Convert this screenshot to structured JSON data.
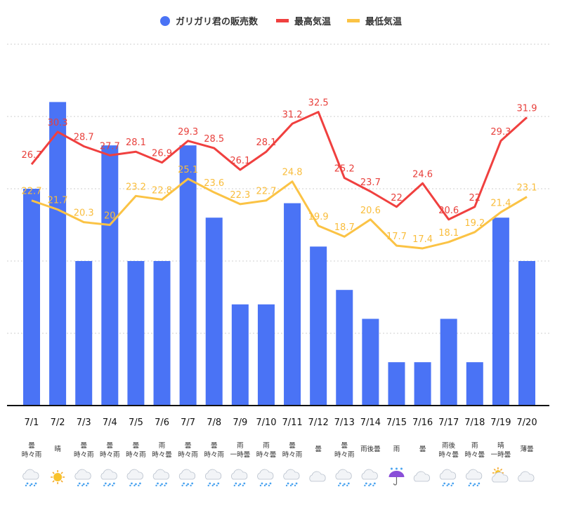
{
  "chart_data": {
    "type": "bar+line",
    "legend": {
      "placement": "top-center",
      "items": [
        "ガリガリ君の販売数",
        "最高気温",
        "最低気温"
      ]
    },
    "colors": {
      "sales": "#4a73f5",
      "high": "#f0403f",
      "low": "#fbc345"
    },
    "categories": [
      "7/1",
      "7/2",
      "7/3",
      "7/4",
      "7/5",
      "7/6",
      "7/7",
      "7/8",
      "7/9",
      "7/10",
      "7/11",
      "7/12",
      "7/13",
      "7/14",
      "7/15",
      "7/16",
      "7/17",
      "7/18",
      "7/19",
      "7/20"
    ],
    "weather": [
      [
        "曇",
        "時々雨"
      ],
      [
        "晴"
      ],
      [
        "曇",
        "時々雨"
      ],
      [
        "曇",
        "時々雨"
      ],
      [
        "曇",
        "時々雨"
      ],
      [
        "雨",
        "時々曇"
      ],
      [
        "曇",
        "時々雨"
      ],
      [
        "曇",
        "時々雨"
      ],
      [
        "雨",
        "一時曇"
      ],
      [
        "雨",
        "時々曇"
      ],
      [
        "曇",
        "時々雨"
      ],
      [
        "曇"
      ],
      [
        "曇",
        "時々雨"
      ],
      [
        "雨後曇"
      ],
      [
        "雨"
      ],
      [
        "曇"
      ],
      [
        "雨後",
        "時々曇"
      ],
      [
        "雨",
        "時々曇"
      ],
      [
        "晴",
        "一時曇"
      ],
      [
        "薄曇"
      ]
    ],
    "weather_icons": [
      "rain-cloud",
      "sun",
      "rain-cloud",
      "rain-cloud",
      "rain-cloud",
      "rain-cloud",
      "rain-cloud",
      "rain-cloud",
      "rain-cloud",
      "rain-cloud",
      "rain-cloud",
      "cloud",
      "rain-cloud",
      "rain-cloud",
      "umbrella-rain",
      "cloud",
      "rain-cloud",
      "rain-cloud",
      "sun-behind-cloud",
      "cloud"
    ],
    "series": [
      {
        "name": "ガリガリ君の販売数",
        "type": "bar",
        "axis": "left",
        "values": [
          15,
          21,
          10,
          18,
          10,
          10,
          18,
          13,
          7,
          7,
          14,
          11,
          8,
          6,
          3,
          3,
          6,
          3,
          13,
          10
        ]
      },
      {
        "name": "最高気温",
        "type": "line",
        "axis": "right",
        "values": [
          26.7,
          30.3,
          28.7,
          27.7,
          28.1,
          26.9,
          29.3,
          28.5,
          26.1,
          28.1,
          31.2,
          32.5,
          25.2,
          23.7,
          22,
          24.6,
          20.6,
          22,
          29.3,
          31.9
        ]
      },
      {
        "name": "最低気温",
        "type": "line",
        "axis": "right",
        "values": [
          22.7,
          21.7,
          20.3,
          20,
          23.2,
          22.8,
          25.1,
          23.6,
          22.3,
          22.7,
          24.8,
          19.9,
          18.7,
          20.6,
          17.7,
          17.4,
          18.1,
          19.2,
          21.4,
          23.1
        ]
      }
    ],
    "sales_ylim": [
      0,
      25
    ],
    "temp_ylim": [
      0,
      40
    ],
    "grid": true
  }
}
